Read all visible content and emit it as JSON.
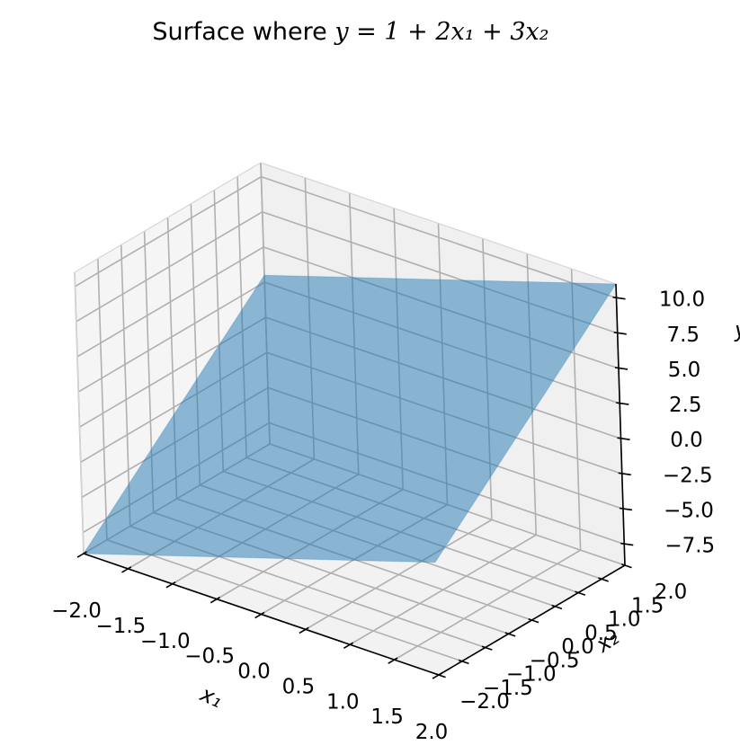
{
  "chart_data": {
    "type": "surface",
    "title_prefix": "Surface where ",
    "title_formula": "y = 1 + 2x₁ + 3x₂",
    "equation": {
      "intercept": 1,
      "coef_x1": 2,
      "coef_x2": 3
    },
    "x1": {
      "label": "x₁",
      "range": [
        -2,
        2
      ],
      "ticks": [
        "−2.0",
        "−1.5",
        "−1.0",
        "−0.5",
        "0.0",
        "0.5",
        "1.0",
        "1.5",
        "2.0"
      ],
      "tick_values": [
        -2.0,
        -1.5,
        -1.0,
        -0.5,
        0.0,
        0.5,
        1.0,
        1.5,
        2.0
      ]
    },
    "x2": {
      "label": "x₂",
      "range": [
        -2,
        2
      ],
      "ticks": [
        "−2.0",
        "−1.5",
        "−1.0",
        "−0.5",
        "0.0",
        "0.5",
        "1.0",
        "1.5",
        "2.0"
      ],
      "tick_values": [
        -2.0,
        -1.5,
        -1.0,
        -0.5,
        0.0,
        0.5,
        1.0,
        1.5,
        2.0
      ]
    },
    "y": {
      "label": "y",
      "range": [
        -9,
        11
      ],
      "ticks": [
        "−7.5",
        "−5.0",
        "−2.5",
        "0.0",
        "2.5",
        "5.0",
        "7.5",
        "10.0"
      ],
      "tick_values": [
        -7.5,
        -5.0,
        -2.5,
        0.0,
        2.5,
        5.0,
        7.5,
        10.0
      ]
    },
    "corners": [
      {
        "x1": -2,
        "x2": -2,
        "y": -9
      },
      {
        "x1": 2,
        "x2": -2,
        "y": -1
      },
      {
        "x1": 2,
        "x2": 2,
        "y": 11
      },
      {
        "x1": -2,
        "x2": 2,
        "y": 3
      }
    ],
    "surface_color": "#1f77b4",
    "surface_alpha": 0.5,
    "grid": true,
    "pane_color": "#f2f2f2",
    "grid_color": "#b0b0b0"
  }
}
